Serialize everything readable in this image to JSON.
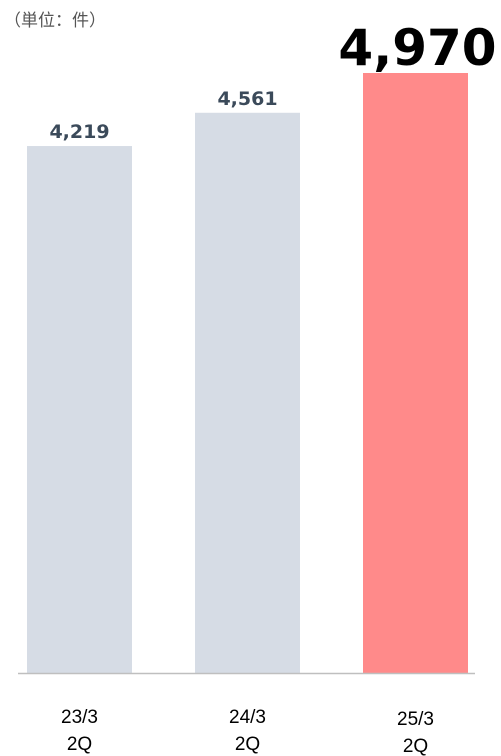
{
  "chart_data": {
    "type": "bar",
    "subtitle": "（単位：件）",
    "categories": [
      "23/3\n2Q",
      "24/3\n2Q",
      "25/3\n2Q"
    ],
    "values": [
      4219,
      4561,
      4970
    ],
    "value_labels": [
      "4,219",
      "4,561",
      "4,970"
    ],
    "colors": [
      "#d6dce5",
      "#d6dce5",
      "#ff8a8a"
    ],
    "ylim": [
      -1200,
      4970
    ]
  }
}
